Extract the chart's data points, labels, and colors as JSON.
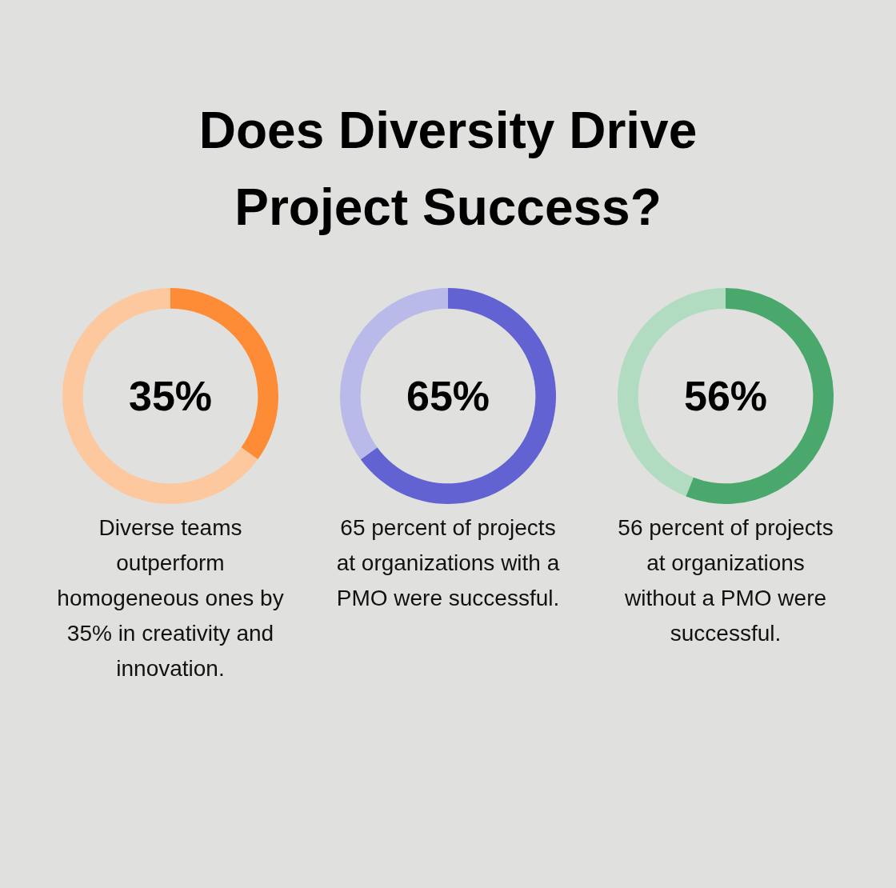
{
  "chart_data": [
    {
      "type": "other",
      "title": "Does Diversity Drive Project Success?"
    },
    {
      "type": "donut",
      "categories": [
        null,
        null
      ],
      "values": [
        35,
        65
      ],
      "colors": [
        "#fe8c36",
        "#fec89e"
      ],
      "annotations": [
        "35%",
        "Diverse teams outperform homogeneous ones by 35% in creativity and innovation."
      ]
    },
    {
      "type": "donut",
      "categories": [
        null,
        null
      ],
      "values": [
        65,
        35
      ],
      "colors": [
        "#6262d2",
        "#b9b9ea"
      ],
      "annotations": [
        "65%",
        "65 percent of projects at organizations with a PMO were successful."
      ]
    },
    {
      "type": "donut",
      "categories": [
        null,
        null
      ],
      "values": [
        56,
        44
      ],
      "colors": [
        "#4aa86c",
        "#b1dcc1"
      ],
      "annotations": [
        "56%",
        "56 percent of projects at organizations without a PMO were successful."
      ]
    }
  ]
}
